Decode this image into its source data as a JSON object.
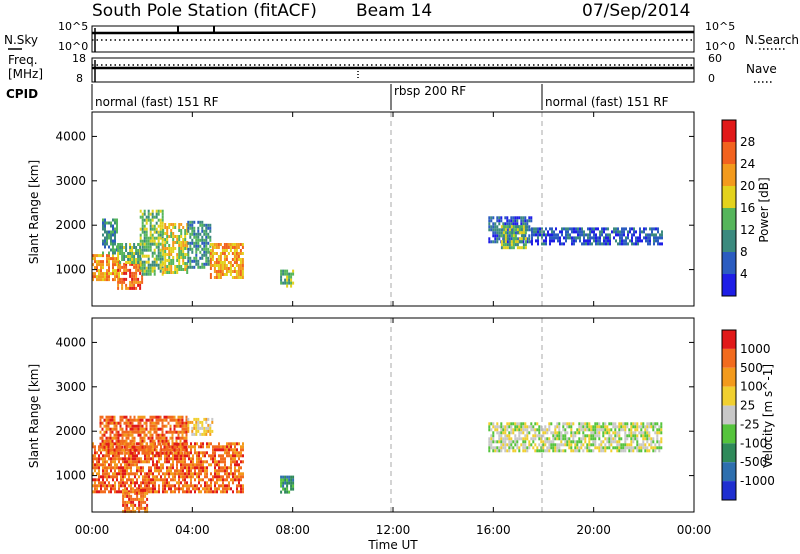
{
  "header": {
    "station": "South Pole Station (fitACF)",
    "beam": "Beam 14",
    "date": "07/Sep/2014"
  },
  "nsky_panel": {
    "left_label": "N.Sky",
    "right_label": "N.Search",
    "left_ticks": [
      "10^5",
      "10^0"
    ],
    "right_ticks": [
      "10^5",
      "10^0"
    ]
  },
  "freq_panel": {
    "left_label_1": "Freq.",
    "left_label_2": "[MHz]",
    "right_label": "Nave",
    "left_ticks": [
      "18",
      "8"
    ],
    "right_ticks": [
      "60",
      "0"
    ]
  },
  "cpid_panel": {
    "label": "CPID",
    "segments": [
      {
        "label": "normal (fast) 151 RF",
        "start_hour": 0,
        "end_hour": 12
      },
      {
        "label": "rbsp 200 RF",
        "start_hour": 12,
        "end_hour": 18
      },
      {
        "label": "normal (fast) 151 RF",
        "start_hour": 18,
        "end_hour": 24
      }
    ]
  },
  "chart_data": [
    {
      "type": "heatmap",
      "name": "power",
      "ylabel": "Slant Range [km]",
      "xlabel": "Time UT",
      "xlim": [
        0,
        24
      ],
      "ylim": [
        180,
        4550
      ],
      "x_ticks": [
        "00:00",
        "04:00",
        "08:00",
        "12:00",
        "16:00",
        "20:00",
        "00:00"
      ],
      "y_ticks": [
        1000,
        2000,
        3000,
        4000
      ],
      "colorbar": {
        "label": "Power [dB]",
        "ticks": [
          "4",
          "8",
          "12",
          "16",
          "20",
          "24",
          "28"
        ],
        "colors": [
          "#1e1ee6",
          "#2b5cc0",
          "#3b8a7e",
          "#55b55b",
          "#e3d21c",
          "#f39a1c",
          "#f2621e",
          "#e11919"
        ]
      },
      "regions": [
        {
          "t0": 0.0,
          "t1": 1.1,
          "r0": 780,
          "r1": 1350,
          "level": 5
        },
        {
          "t0": 0.4,
          "t1": 1.0,
          "r0": 1350,
          "r1": 2150,
          "level": 2
        },
        {
          "t0": 1.0,
          "t1": 2.0,
          "r0": 600,
          "r1": 1150,
          "level": 6
        },
        {
          "t0": 1.0,
          "t1": 1.9,
          "r0": 1150,
          "r1": 1600,
          "level": 3
        },
        {
          "t0": 1.9,
          "t1": 2.8,
          "r0": 900,
          "r1": 2350,
          "level": 3
        },
        {
          "t0": 2.8,
          "t1": 3.8,
          "r0": 950,
          "r1": 2050,
          "level": 4
        },
        {
          "t0": 3.8,
          "t1": 4.7,
          "r0": 1050,
          "r1": 2100,
          "level": 2
        },
        {
          "t0": 4.7,
          "t1": 6.0,
          "r0": 800,
          "r1": 1600,
          "level": 5
        },
        {
          "t0": 7.5,
          "t1": 8.0,
          "r0": 600,
          "r1": 1000,
          "level": 3
        },
        {
          "t0": 15.8,
          "t1": 17.5,
          "r0": 1650,
          "r1": 2200,
          "level": 1
        },
        {
          "t0": 16.3,
          "t1": 17.3,
          "r0": 1500,
          "r1": 2000,
          "level": 3
        },
        {
          "t0": 17.5,
          "t1": 22.7,
          "r0": 1550,
          "r1": 1950,
          "level": 1
        }
      ]
    },
    {
      "type": "heatmap",
      "name": "velocity",
      "ylabel": "Slant Range [km]",
      "xlabel": "Time UT",
      "xlim": [
        0,
        24
      ],
      "ylim": [
        180,
        4550
      ],
      "x_ticks": [
        "00:00",
        "04:00",
        "08:00",
        "12:00",
        "16:00",
        "20:00",
        "00:00"
      ],
      "y_ticks": [
        1000,
        2000,
        3000,
        4000
      ],
      "colorbar": {
        "label": "Velocity [m s^-1]",
        "ticks": [
          "1000",
          "500",
          "100",
          "25",
          "-25",
          "-100",
          "-500",
          "-1000"
        ],
        "colors": [
          "#1f2fd0",
          "#2e6fae",
          "#2f8a5a",
          "#55c43c",
          "#c8c8c8",
          "#f1d030",
          "#f39a1c",
          "#f26b1e",
          "#e11919"
        ]
      },
      "regions": [
        {
          "t0": 0.0,
          "t1": 6.0,
          "r0": 650,
          "r1": 1750,
          "level": 7
        },
        {
          "t0": 0.3,
          "t1": 3.8,
          "r0": 1500,
          "r1": 2350,
          "level": 7
        },
        {
          "t0": 1.2,
          "t1": 2.2,
          "r0": 200,
          "r1": 700,
          "level": 7
        },
        {
          "t0": 3.8,
          "t1": 4.8,
          "r0": 1900,
          "r1": 2300,
          "level": 5
        },
        {
          "t0": 7.5,
          "t1": 8.0,
          "r0": 600,
          "r1": 1000,
          "level": 2
        },
        {
          "t0": 15.8,
          "t1": 22.7,
          "r0": 1550,
          "r1": 2200,
          "level": 4
        }
      ]
    }
  ]
}
